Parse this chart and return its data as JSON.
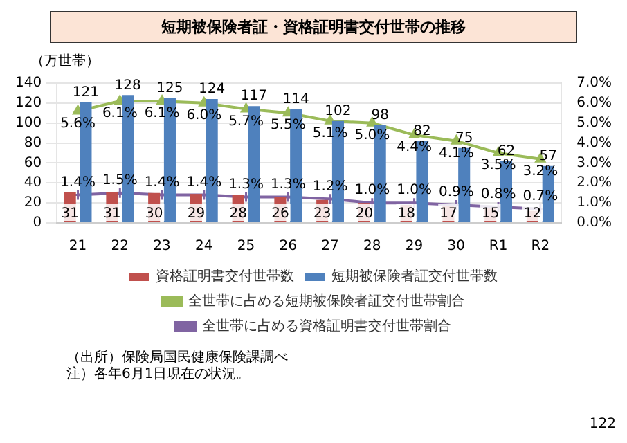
{
  "chart_data": {
    "type": "bar",
    "title": "短期被保険者証・資格証明書交付世帯の推移",
    "ylabel": "（万世帯）",
    "categories": [
      "21",
      "22",
      "23",
      "24",
      "25",
      "26",
      "27",
      "28",
      "29",
      "30",
      "R1",
      "R2"
    ],
    "series": [
      {
        "name": "資格証明書交付世帯数",
        "color": "#c0504d",
        "values": [
          31,
          31,
          30,
          29,
          28,
          26,
          23,
          20,
          18,
          17,
          15,
          12
        ],
        "value_labels": [
          "31",
          "31",
          "30",
          "29",
          "28",
          "26",
          "23",
          "20",
          "18",
          "17",
          "15",
          "12"
        ]
      },
      {
        "name": "短期被保険者証交付世帯数",
        "color": "#4f81bd",
        "values": [
          121,
          128,
          125,
          124,
          117,
          114,
          102,
          98,
          82,
          75,
          62,
          57
        ],
        "value_labels": [
          "121",
          "128",
          "125",
          "124",
          "117",
          "114",
          "102",
          "98",
          "82",
          "75",
          "62",
          "57"
        ]
      },
      {
        "name": "全世帯に占める短期被保険者証交付世帯割合",
        "type": "line",
        "axis": "y2",
        "marker": "triangle",
        "color": "#9bbb59",
        "values": [
          5.6,
          6.1,
          6.1,
          6.0,
          5.7,
          5.5,
          5.1,
          5.0,
          4.4,
          4.1,
          3.5,
          3.2
        ],
        "value_labels": [
          "5.6%",
          "6.1%",
          "6.1%",
          "6.0%",
          "5.7%",
          "5.5%",
          "5.1%",
          "5.0%",
          "4.4%",
          "4.1%",
          "3.5%",
          "3.2%"
        ]
      },
      {
        "name": "全世帯に占める資格証明書交付世帯割合",
        "type": "line",
        "axis": "y2",
        "marker": "cross",
        "color": "#8064a2",
        "values": [
          1.4,
          1.5,
          1.4,
          1.4,
          1.3,
          1.3,
          1.2,
          1.0,
          1.0,
          0.9,
          0.8,
          0.7
        ],
        "value_labels": [
          "1.4%",
          "1.5%",
          "1.4%",
          "1.4%",
          "1.3%",
          "1.3%",
          "1.2%",
          "1.0%",
          "1.0%",
          "0.9%",
          "0.8%",
          "0.7%"
        ]
      }
    ],
    "ylim": [
      0,
      140
    ],
    "yticks": [
      0,
      20,
      40,
      60,
      80,
      100,
      120,
      140
    ],
    "y2lim": [
      0,
      7
    ],
    "y2ticks": [
      {
        "value": 0,
        "label": "0.0%"
      },
      {
        "value": 1,
        "label": "1.0%"
      },
      {
        "value": 2,
        "label": "2.0%"
      },
      {
        "value": 3,
        "label": "3.0%"
      },
      {
        "value": 4,
        "label": "4.0%"
      },
      {
        "value": 5,
        "label": "5.0%"
      },
      {
        "value": 6,
        "label": "6.0%"
      },
      {
        "value": 7,
        "label": "7.0%"
      }
    ],
    "grid": "y",
    "legend": "bottom",
    "annotations": [
      "（出所）保険局国民健康保険課調べ",
      "注）各年6月1日現在の状況。",
      "122"
    ]
  }
}
